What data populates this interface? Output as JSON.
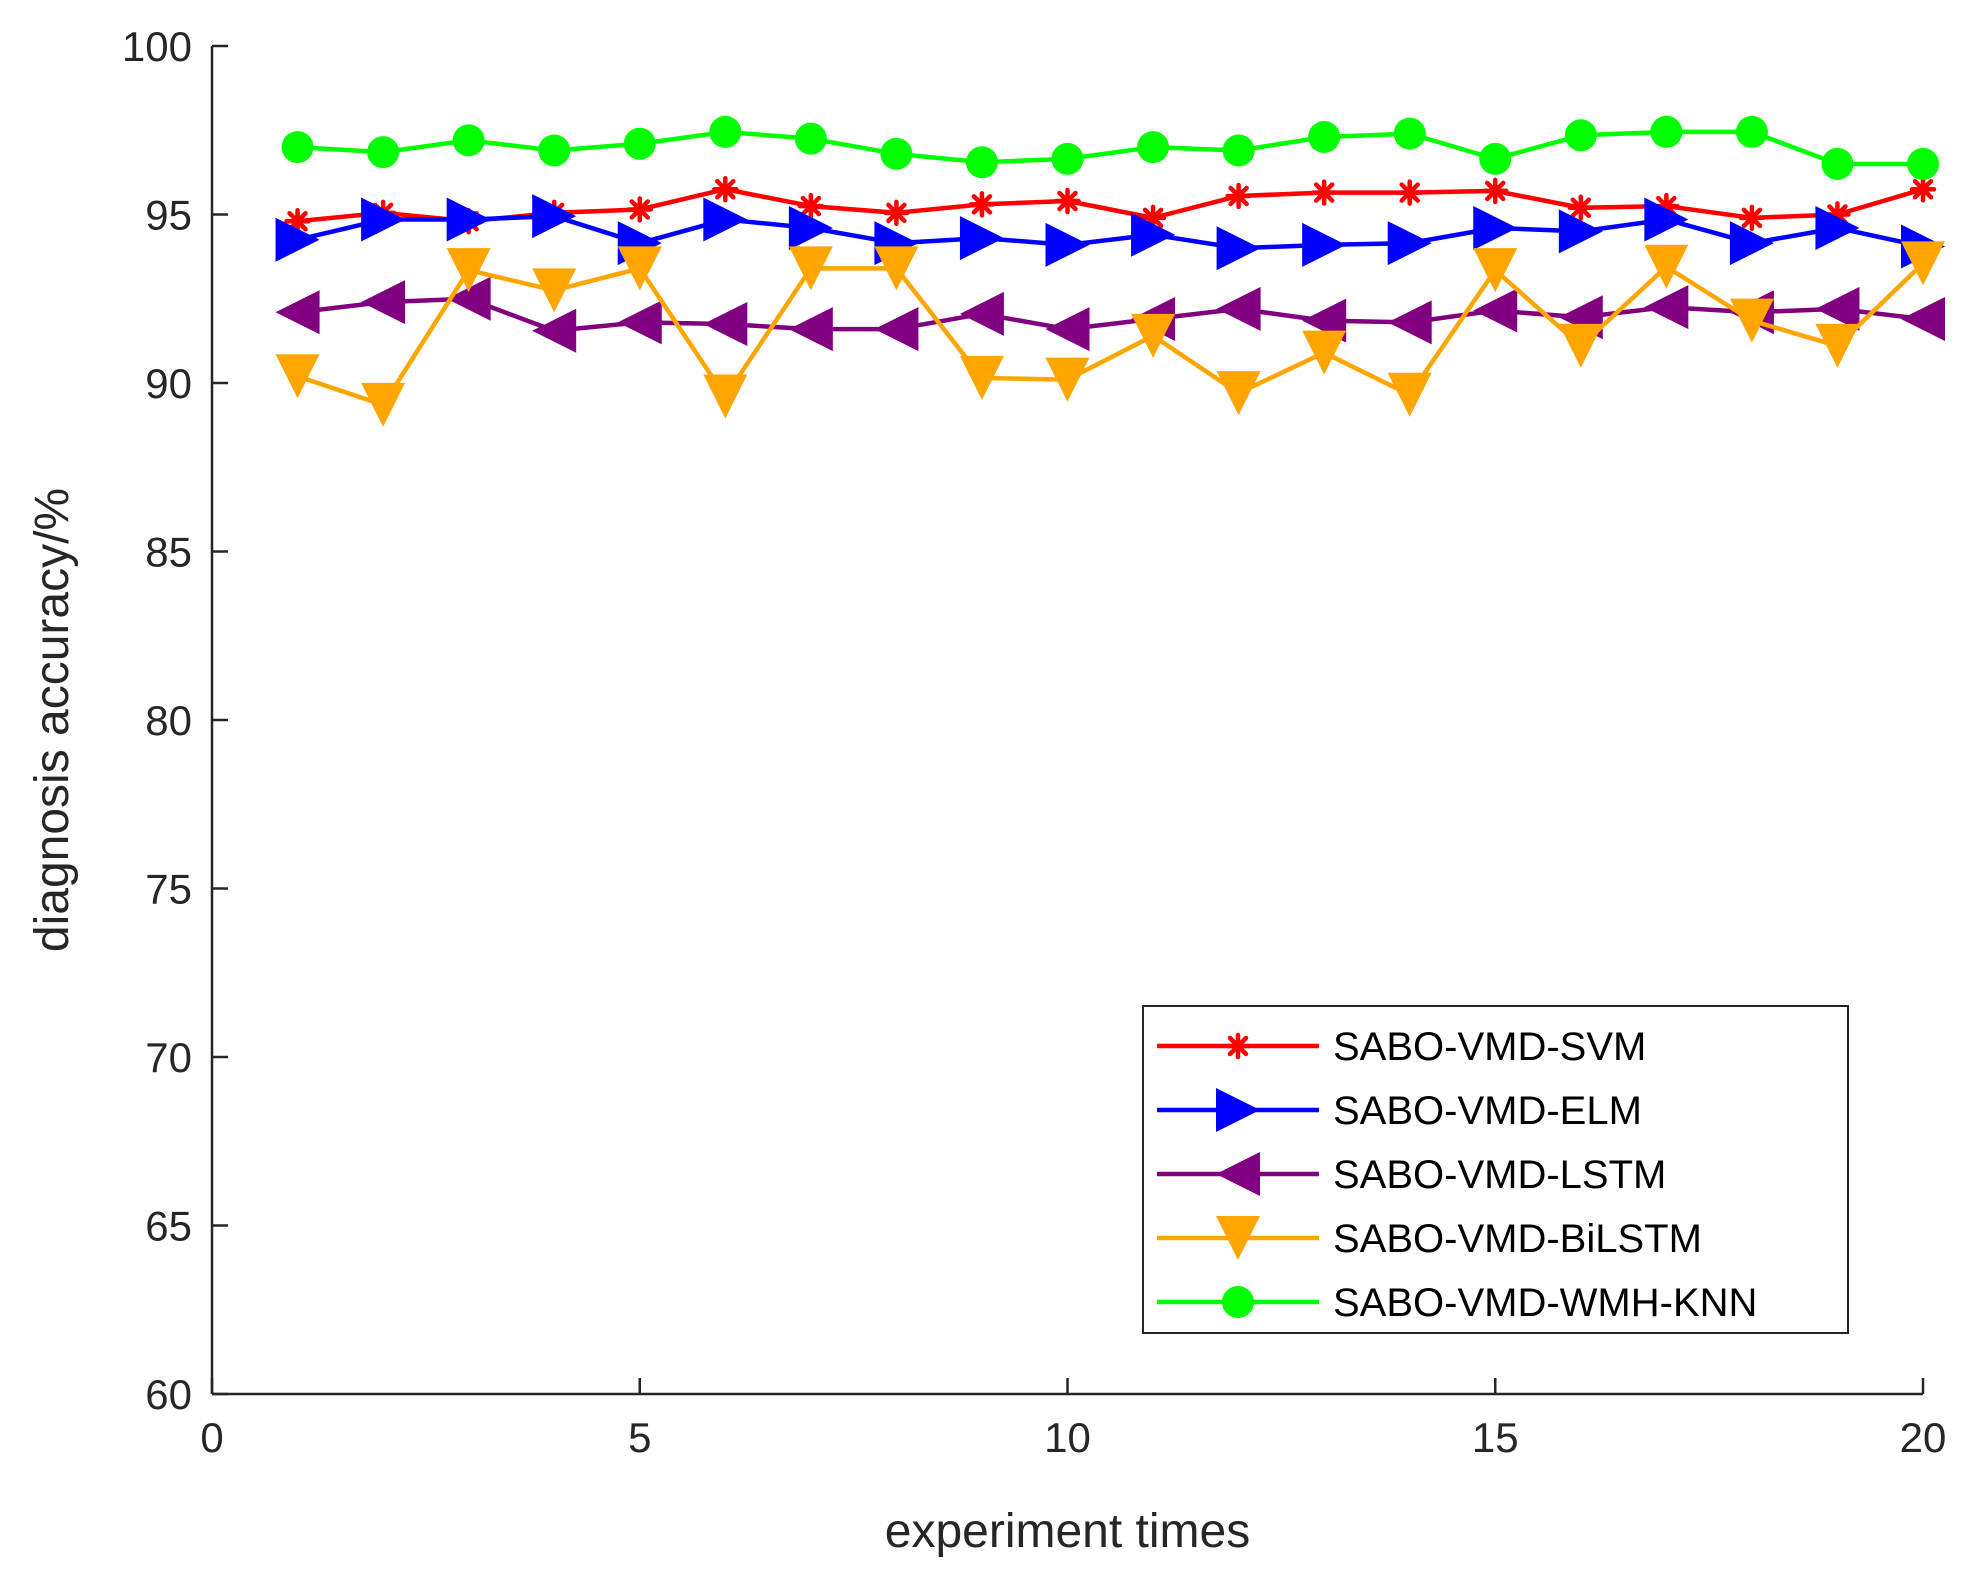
{
  "chart_data": {
    "type": "line",
    "title": "",
    "xlabel": "experiment times",
    "ylabel": "diagnosis accuracy/%",
    "xlim": [
      0,
      20
    ],
    "ylim": [
      60,
      100
    ],
    "xticks": [
      0,
      5,
      10,
      15,
      20
    ],
    "yticks": [
      60,
      65,
      70,
      75,
      80,
      85,
      90,
      95,
      100
    ],
    "grid": false,
    "legend_position": "bottom-right",
    "x": [
      1,
      2,
      3,
      4,
      5,
      6,
      7,
      8,
      9,
      10,
      11,
      12,
      13,
      14,
      15,
      16,
      17,
      18,
      19,
      20
    ],
    "series": [
      {
        "name": "SABO-VMD-SVM",
        "color": "#ff0000",
        "marker": "asterisk",
        "values": [
          94.8,
          95.05,
          94.8,
          95.05,
          95.15,
          95.75,
          95.25,
          95.05,
          95.3,
          95.4,
          94.9,
          95.55,
          95.65,
          95.65,
          95.7,
          95.2,
          95.25,
          94.9,
          95.0,
          95.75
        ]
      },
      {
        "name": "SABO-VMD-ELM",
        "color": "#0000ff",
        "marker": "triangle-right",
        "values": [
          94.25,
          94.85,
          94.85,
          94.95,
          94.15,
          94.85,
          94.6,
          94.15,
          94.3,
          94.1,
          94.4,
          94.0,
          94.1,
          94.15,
          94.6,
          94.5,
          94.85,
          94.15,
          94.6,
          94.05
        ]
      },
      {
        "name": "SABO-VMD-LSTM",
        "color": "#800080",
        "marker": "triangle-left",
        "values": [
          92.1,
          92.4,
          92.5,
          91.55,
          91.8,
          91.75,
          91.6,
          91.6,
          92.05,
          91.6,
          91.9,
          92.2,
          91.85,
          91.8,
          92.15,
          91.95,
          92.25,
          92.1,
          92.2,
          91.9
        ]
      },
      {
        "name": "SABO-VMD-BiLSTM",
        "color": "#ffa500",
        "marker": "triangle-down",
        "values": [
          90.2,
          89.35,
          93.35,
          92.75,
          93.4,
          89.6,
          93.4,
          93.4,
          90.15,
          90.1,
          91.4,
          89.7,
          90.9,
          89.65,
          93.35,
          91.1,
          93.45,
          91.85,
          91.1,
          93.55
        ]
      },
      {
        "name": "SABO-VMD-WMH-KNN",
        "color": "#00ff00",
        "marker": "circle",
        "values": [
          97.0,
          96.85,
          97.2,
          96.9,
          97.1,
          97.45,
          97.25,
          96.8,
          96.55,
          96.65,
          97.0,
          96.9,
          97.3,
          97.4,
          96.65,
          97.35,
          97.45,
          97.45,
          96.5,
          96.5
        ]
      }
    ]
  }
}
